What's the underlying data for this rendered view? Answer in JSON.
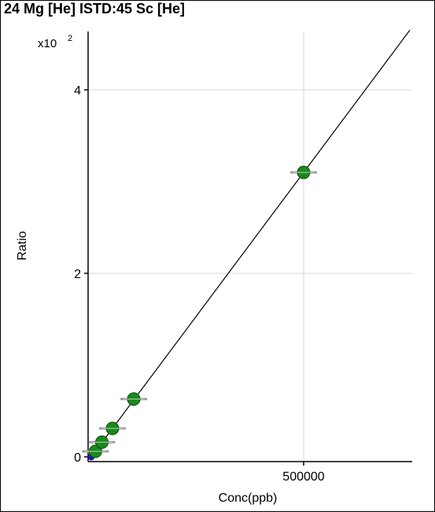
{
  "chart_data": {
    "type": "scatter",
    "title": "24 Mg [He] ISTD:45 Sc [He]",
    "xlabel": "Conc(ppb)",
    "ylabel": "Ratio",
    "y_scale_prefix": "x10",
    "y_scale_exponent": "2",
    "xlim": [
      0,
      750000
    ],
    "ylim": [
      0,
      4.7
    ],
    "x_ticks": [
      500000
    ],
    "x_tick_labels": [
      "500000"
    ],
    "y_ticks": [
      0,
      2,
      4
    ],
    "y_tick_labels": [
      "0",
      "2",
      "4"
    ],
    "grid": true,
    "colors": {
      "point": "#1a8a1a",
      "point_dark": "#0d4d0d",
      "origin_point": "#1a1aa0",
      "fit_line": "#000000",
      "grid": "#d8d8d8",
      "error_bar": "#a0a0a0"
    },
    "points": [
      {
        "x": 0,
        "y": 0
      },
      {
        "x": 10000,
        "y": 0.06
      },
      {
        "x": 25000,
        "y": 0.16
      },
      {
        "x": 50000,
        "y": 0.31
      },
      {
        "x": 100000,
        "y": 0.63
      },
      {
        "x": 500000,
        "y": 3.1
      }
    ],
    "fit_line": {
      "x": [
        0,
        750000
      ],
      "y": [
        0,
        4.65
      ]
    }
  }
}
